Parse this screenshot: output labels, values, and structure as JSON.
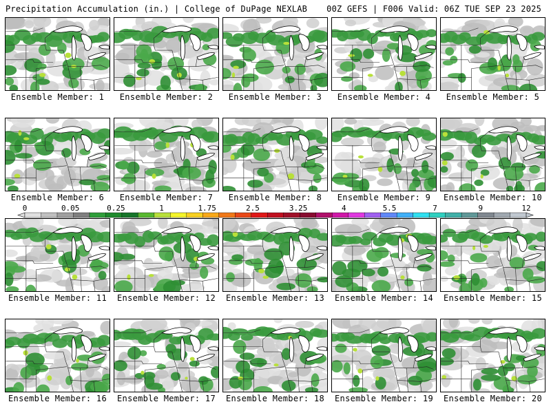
{
  "header": {
    "title": "Precipitation Accumulation (in.) | College of DuPage NEXLAB",
    "run_info": "00Z GEFS | F006 Valid: 06Z TUE SEP 23 2025"
  },
  "colorbar": {
    "ticks": [
      "0",
      "0.05",
      "0.25",
      "1",
      "1.75",
      "2.5",
      "3.25",
      "4",
      "5.5",
      "7",
      "9",
      "12"
    ],
    "colors": [
      "#e0e0e0",
      "#c0c0c0",
      "#a0a0a0",
      "#808080",
      "#2f9e3a",
      "#1e8a2c",
      "#17752a",
      "#58b830",
      "#b8e03a",
      "#f4f42a",
      "#f8d020",
      "#f8a818",
      "#f07818",
      "#e84818",
      "#e01818",
      "#c01020",
      "#a01028",
      "#880c30",
      "#b0106a",
      "#d018a8",
      "#e038e0",
      "#a060f0",
      "#6088f8",
      "#40b0f8",
      "#30e0f0",
      "#30d0c0",
      "#40b0a8",
      "#609898",
      "#808890",
      "#a0a8b0",
      "#c0c8d0"
    ]
  },
  "members": [
    {
      "label": "Ensemble Member: 1"
    },
    {
      "label": "Ensemble Member: 2"
    },
    {
      "label": "Ensemble Member: 3"
    },
    {
      "label": "Ensemble Member: 4"
    },
    {
      "label": "Ensemble Member: 5"
    },
    {
      "label": "Ensemble Member: 6"
    },
    {
      "label": "Ensemble Member: 7"
    },
    {
      "label": "Ensemble Member: 8"
    },
    {
      "label": "Ensemble Member: 9"
    },
    {
      "label": "Ensemble Member: 10"
    },
    {
      "label": "Ensemble Member: 11"
    },
    {
      "label": "Ensemble Member: 12"
    },
    {
      "label": "Ensemble Member: 13"
    },
    {
      "label": "Ensemble Member: 14"
    },
    {
      "label": "Ensemble Member: 15"
    },
    {
      "label": "Ensemble Member: 16"
    },
    {
      "label": "Ensemble Member: 17"
    },
    {
      "label": "Ensemble Member: 18"
    },
    {
      "label": "Ensemble Member: 19"
    },
    {
      "label": "Ensemble Member: 20"
    }
  ]
}
